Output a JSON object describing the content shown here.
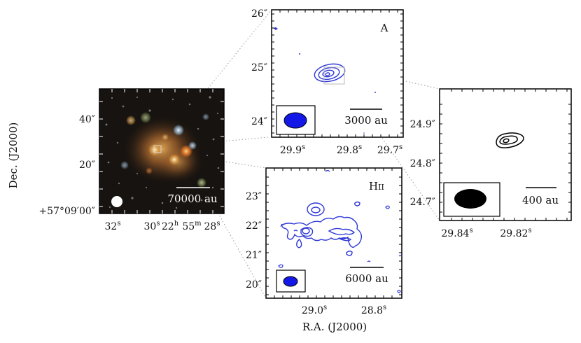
{
  "axis_labels": {
    "x": "R.A. (J2000)",
    "y": "Dec. (J2000)"
  },
  "panels": {
    "optical": {
      "yticks": [
        "40″",
        "20″",
        "+57°09′00″"
      ],
      "xticks": [
        {
          "main": "32",
          "sup": "s"
        },
        {
          "main": "30",
          "sup": "s"
        },
        {
          "main": "22",
          "sup": "h"
        },
        {
          "main": "55",
          "sup": "m"
        },
        {
          "main": "28",
          "sup": "s"
        }
      ],
      "scalebar": "70000 au",
      "beam_color": "#ffffff"
    },
    "a": {
      "label": "A",
      "yticks": [
        "26″",
        "25″",
        "24″"
      ],
      "xticks": [
        {
          "main": "29.9",
          "sup": "s"
        },
        {
          "main": "29.8",
          "sup": "s"
        },
        {
          "main": "29.7",
          "sup": "s"
        }
      ],
      "scalebar": "3000 au",
      "contour_color": "#2e38d6",
      "beam_color": "#1418e6"
    },
    "hii": {
      "label_main": "H",
      "label_small": "II",
      "yticks": [
        "23″",
        "22″",
        "21″",
        "20″"
      ],
      "xticks": [
        {
          "main": "29.0",
          "sup": "s"
        },
        {
          "main": "28.8",
          "sup": "s"
        }
      ],
      "scalebar": "6000 au",
      "contour_color": "#2e38d6",
      "beam_color": "#1418e6"
    },
    "zoom": {
      "yticks": [
        "24.9″",
        "24.8″",
        "24.7″"
      ],
      "xticks": [
        {
          "main": "29.84",
          "sup": "s"
        },
        {
          "main": "29.82",
          "sup": "s"
        }
      ],
      "scalebar": "400 au",
      "contour_color": "#000000",
      "beam_color": "#000000"
    }
  }
}
